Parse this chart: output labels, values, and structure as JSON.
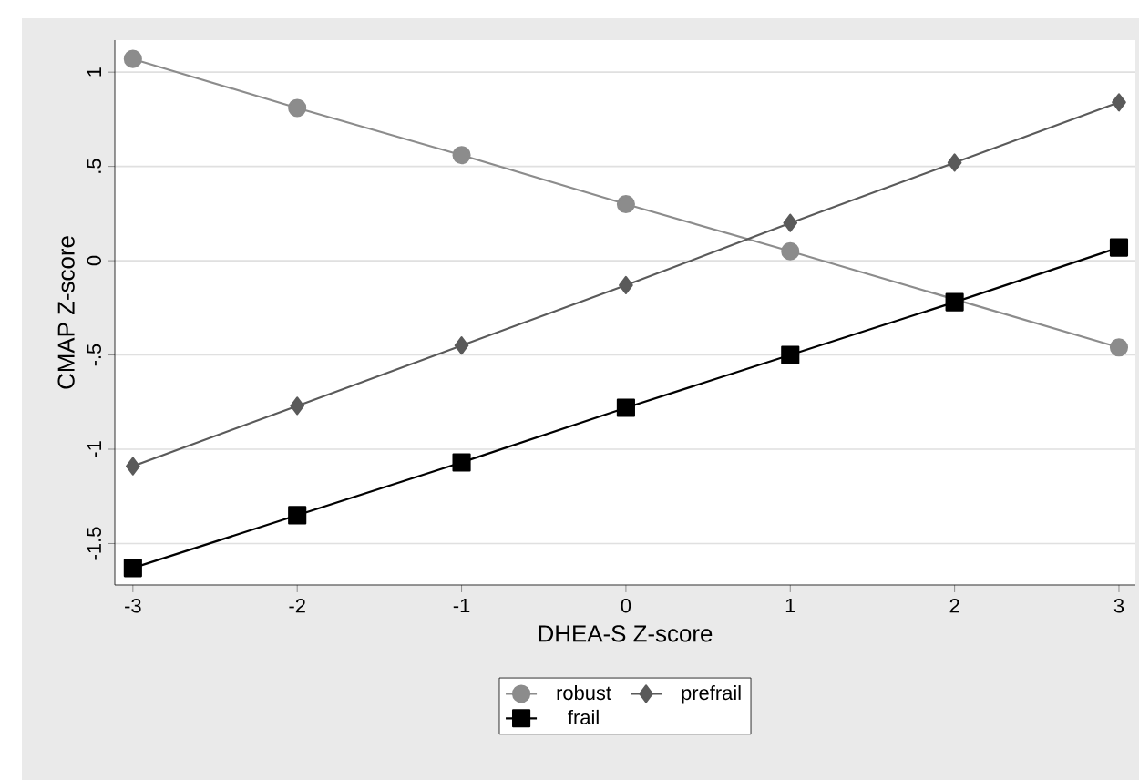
{
  "chart_data": {
    "type": "line",
    "xlabel": "DHEA-S Z-score",
    "ylabel": "CMAP Z-score",
    "x": [
      -3,
      -2,
      -1,
      0,
      1,
      2,
      3
    ],
    "series": [
      {
        "name": "robust",
        "color": "#8c8c8c",
        "marker": "circle",
        "values": [
          1.07,
          0.81,
          0.56,
          0.3,
          0.05,
          null,
          -0.46
        ]
      },
      {
        "name": "prefrail",
        "color": "#5a5a5a",
        "marker": "diamond",
        "values": [
          -1.09,
          -0.77,
          -0.45,
          -0.13,
          0.2,
          0.52,
          0.84
        ]
      },
      {
        "name": "frail",
        "color": "#000000",
        "marker": "square",
        "values": [
          -1.63,
          -1.35,
          -1.07,
          -0.78,
          -0.5,
          -0.22,
          0.07
        ]
      }
    ],
    "xlim": [
      -3.11,
      3.1
    ],
    "ylim": [
      -1.72,
      1.17
    ],
    "xticks": [
      -3,
      -2,
      -1,
      0,
      1,
      2,
      3
    ],
    "yticks": [
      {
        "value": -1.5,
        "label": "-1.5"
      },
      {
        "value": -1,
        "label": "-1"
      },
      {
        "value": -0.5,
        "label": "-.5"
      },
      {
        "value": 0,
        "label": "0"
      },
      {
        "value": 0.5,
        "label": ".5"
      },
      {
        "value": 1,
        "label": "1"
      }
    ],
    "grid": "y",
    "legend": "bottom",
    "line_style": "solid"
  }
}
